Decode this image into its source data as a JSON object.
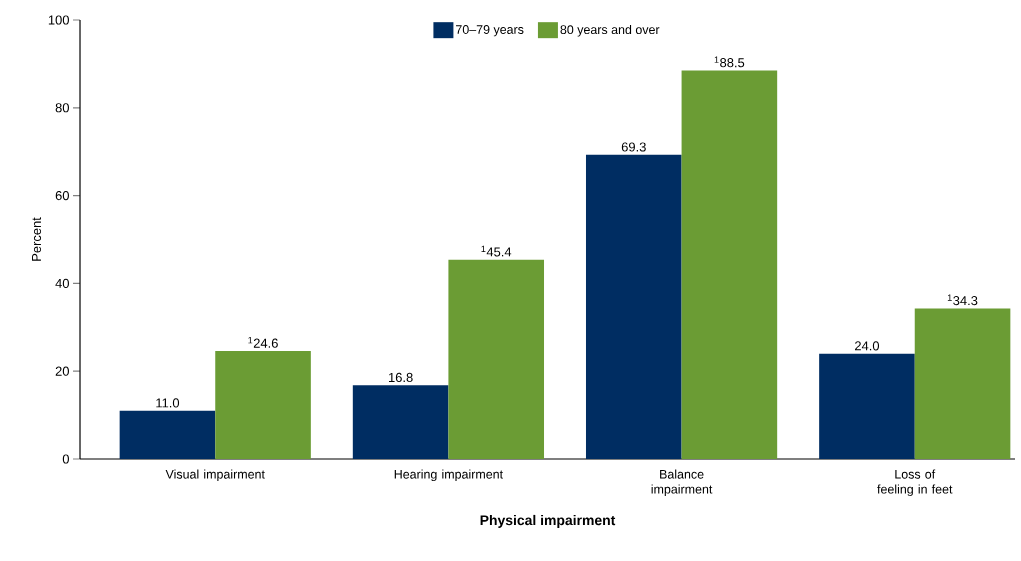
{
  "chart_data": {
    "type": "bar",
    "xlabel": "Physical impairment",
    "ylabel": "Percent",
    "categories": [
      "Visual impairment",
      "Hearing impairment",
      "Balance impairment",
      "Loss of feeling in feet"
    ],
    "series": [
      {
        "name": "70–79 years",
        "color": "#002d62",
        "values": [
          11.0,
          16.8,
          69.3,
          24.0
        ],
        "value_labels": [
          "11.0",
          "16.8",
          "69.3",
          "24.0"
        ]
      },
      {
        "name": "80 years and over",
        "color": "#6b9c34",
        "values": [
          24.6,
          45.4,
          88.5,
          34.3
        ],
        "value_labels": [
          "$^{1}$24.6",
          "$^{1}$45.4",
          "$^{1}$88.5",
          "$^{1}$34.3"
        ]
      }
    ],
    "ylim": [
      0,
      100
    ],
    "yticks": [
      0,
      20,
      40,
      60,
      80,
      100
    ],
    "legend": "top"
  }
}
